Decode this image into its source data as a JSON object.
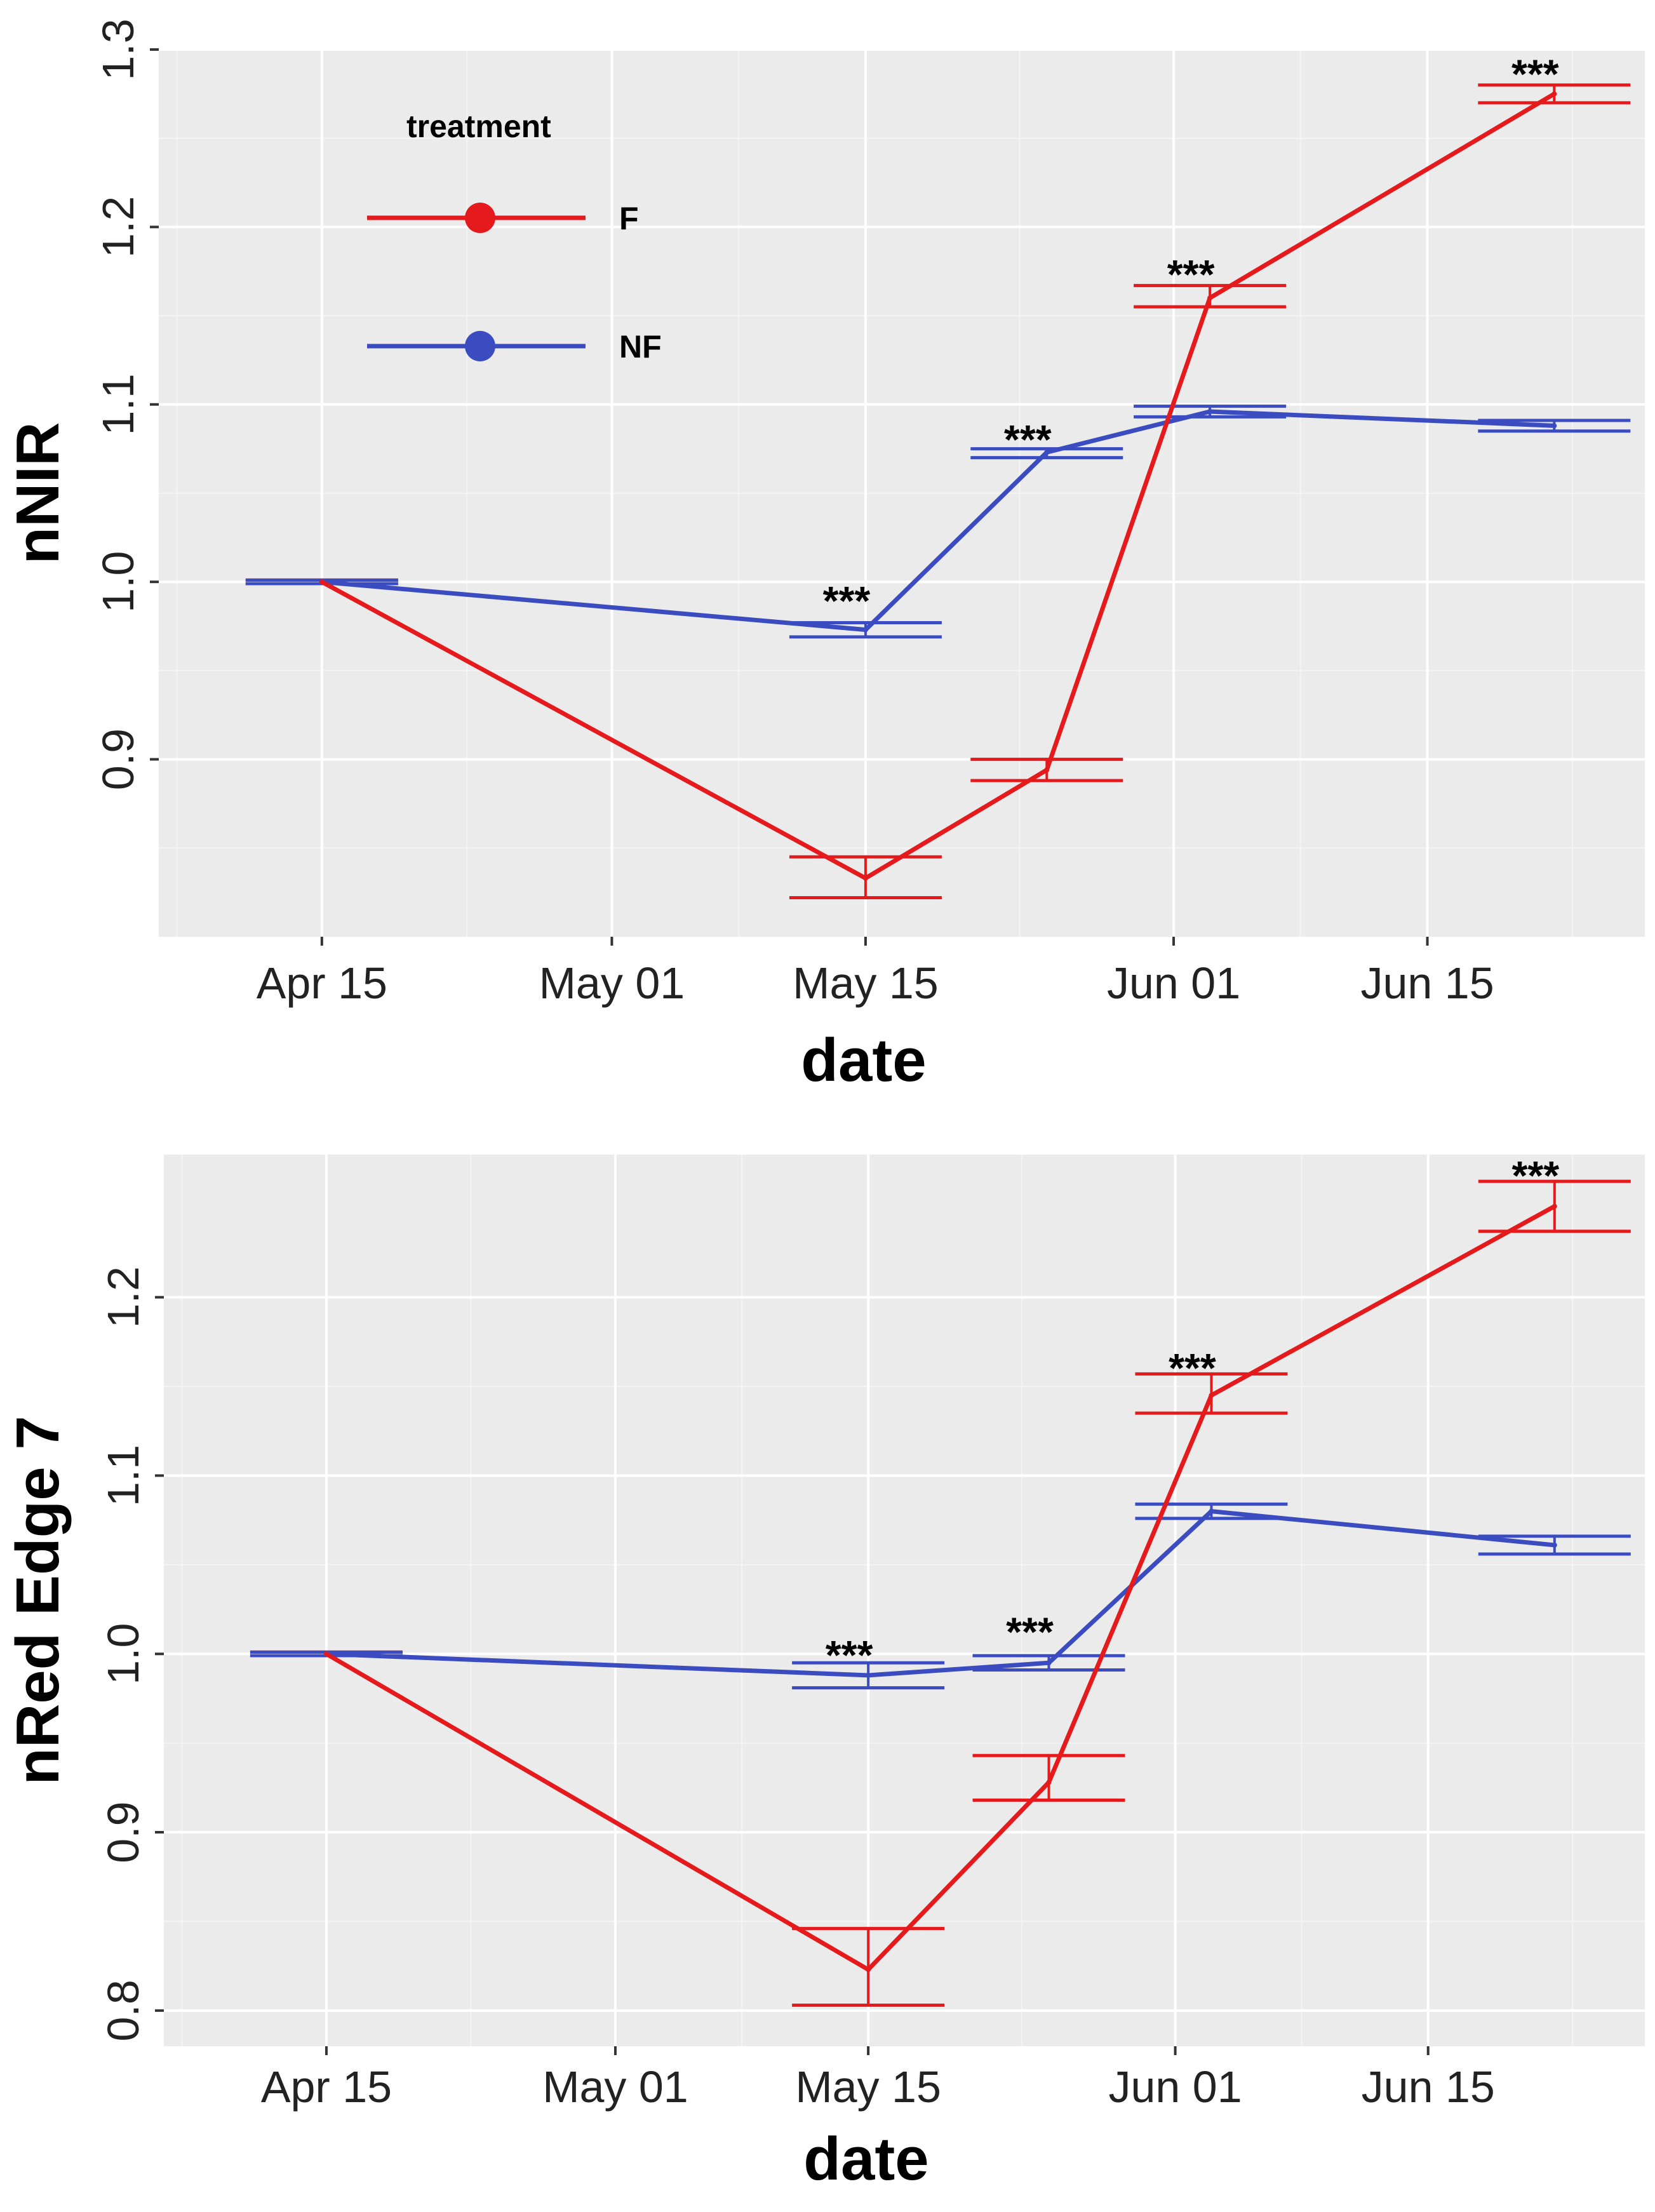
{
  "chart_data": [
    {
      "type": "line",
      "title": "",
      "xlabel": "date",
      "ylabel": "nNIR",
      "x_ticks": [
        "Apr 15",
        "May 01",
        "May 15",
        "Jun 01",
        "Jun 15"
      ],
      "x_tick_days": [
        15,
        31,
        45,
        62,
        76
      ],
      "xlim_days": [
        6,
        88
      ],
      "y_ticks": [
        "0.9",
        "1.0",
        "1.1",
        "1.2",
        "1.3"
      ],
      "ylim": [
        0.8,
        1.3
      ],
      "grid": true,
      "legend": {
        "title": "treatment",
        "placement": "top-left",
        "entries": [
          {
            "name": "F",
            "color": "#e41a1c"
          },
          {
            "name": "NF",
            "color": "#3b4cc0"
          }
        ]
      },
      "x_days": [
        15,
        45,
        55,
        64,
        83
      ],
      "x_dates": [
        "Apr 15",
        "May 15",
        "May 25",
        "Jun 03",
        "Jun 22"
      ],
      "series": [
        {
          "name": "F",
          "color": "#e41a1c",
          "values": [
            1.0,
            0.833,
            0.894,
            1.16,
            1.275
          ],
          "err_lo": [
            0.999,
            0.822,
            0.888,
            1.155,
            1.27
          ],
          "err_hi": [
            1.001,
            0.845,
            0.9,
            1.167,
            1.28
          ]
        },
        {
          "name": "NF",
          "color": "#3b4cc0",
          "values": [
            1.0,
            0.973,
            1.073,
            1.096,
            1.088
          ],
          "err_lo": [
            0.999,
            0.969,
            1.07,
            1.093,
            1.085
          ],
          "err_hi": [
            1.001,
            0.977,
            1.075,
            1.099,
            1.091
          ]
        }
      ],
      "annotations": [
        {
          "text": "***",
          "x_day": 45,
          "y": 0.99
        },
        {
          "text": "***",
          "x_day": 55,
          "y": 1.081
        },
        {
          "text": "***",
          "x_day": 64,
          "y": 1.174
        },
        {
          "text": "***",
          "x_day": 83,
          "y": 1.287
        }
      ]
    },
    {
      "type": "line",
      "title": "",
      "xlabel": "date",
      "ylabel": "nRed Edge 7",
      "x_ticks": [
        "Apr 15",
        "May 01",
        "May 15",
        "Jun 01",
        "Jun 15"
      ],
      "x_tick_days": [
        15,
        31,
        45,
        62,
        76
      ],
      "xlim_days": [
        6,
        88
      ],
      "y_ticks": [
        "0.8",
        "0.9",
        "1.0",
        "1.1",
        "1.2"
      ],
      "ylim": [
        0.78,
        1.28
      ],
      "grid": true,
      "x_days": [
        15,
        45,
        55,
        64,
        83
      ],
      "x_dates": [
        "Apr 15",
        "May 15",
        "May 25",
        "Jun 03",
        "Jun 22"
      ],
      "series": [
        {
          "name": "F",
          "color": "#e41a1c",
          "values": [
            1.0,
            0.823,
            0.928,
            1.145,
            1.251
          ],
          "err_lo": [
            0.999,
            0.803,
            0.918,
            1.135,
            1.237
          ],
          "err_hi": [
            1.001,
            0.846,
            0.943,
            1.157,
            1.265
          ]
        },
        {
          "name": "NF",
          "color": "#3b4cc0",
          "values": [
            1.0,
            0.988,
            0.995,
            1.08,
            1.061
          ],
          "err_lo": [
            0.999,
            0.981,
            0.991,
            1.076,
            1.056
          ],
          "err_hi": [
            1.001,
            0.995,
            0.999,
            1.084,
            1.066
          ]
        }
      ],
      "annotations": [
        {
          "text": "***",
          "x_day": 45,
          "y": 1.0
        },
        {
          "text": "***",
          "x_day": 55,
          "y": 1.013
        },
        {
          "text": "***",
          "x_day": 64,
          "y": 1.161
        },
        {
          "text": "***",
          "x_day": 83,
          "y": 1.269
        }
      ]
    }
  ]
}
